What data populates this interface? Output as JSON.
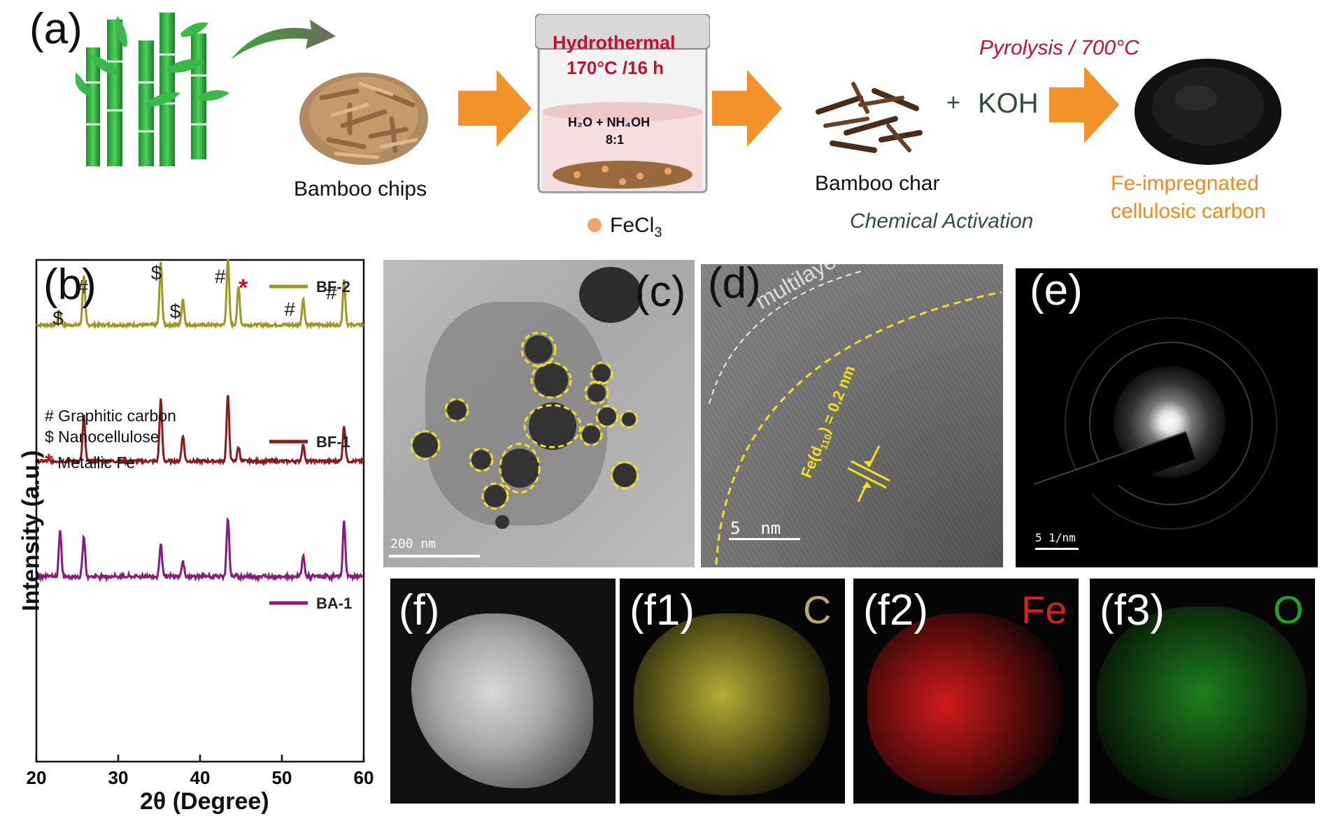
{
  "panel_a": {
    "label": "(a)",
    "bamboo_chips_label": "Bamboo chips",
    "hydro_title": "Hydrothermal",
    "hydro_cond": "170°C /16 h",
    "solution_line1": "H₂O + NH₄OH",
    "solution_line2": "8:1",
    "fecl3_main": "FeCl",
    "fecl3_sub": "3",
    "bamboo_char_label": "Bamboo char",
    "plus": "+",
    "koh": "KOH",
    "pyrolysis": "Pyrolysis / 700°C",
    "chem_activation": "Chemical Activation",
    "product_line1": "Fe-impregnated",
    "product_line2": "cellulosic carbon",
    "colors": {
      "green": "#2ea12e",
      "red": "#c8102e",
      "orange": "#f28a1a",
      "dark_green": "#2f4f3a"
    }
  },
  "panel_b": {
    "label": "(b)",
    "legend_graphitic": "# Graphitic carbon",
    "legend_nanocellulose": "$ Nanocellulose",
    "legend_fe_star": "*",
    "legend_fe": "Metallic Fe",
    "peak_marks": [
      "$",
      "#",
      "$",
      "$",
      "#",
      "*",
      "#",
      "#"
    ]
  },
  "chart_data": {
    "type": "line",
    "xlabel": "2θ (Degree)",
    "ylabel": "Intensity (a.u.)",
    "xlim": [
      20,
      60
    ],
    "xticks": [
      20,
      30,
      40,
      50,
      60
    ],
    "series": [
      {
        "name": "BF-2",
        "color": "#9a9a1e",
        "offset": 2.0,
        "peaks": [
          [
            22.8,
            0.12
          ],
          [
            25.8,
            0.42
          ],
          [
            35.2,
            0.52
          ],
          [
            37.9,
            0.22
          ],
          [
            43.4,
            0.56
          ],
          [
            44.7,
            0.32
          ],
          [
            52.6,
            0.22
          ],
          [
            57.6,
            0.38
          ]
        ]
      },
      {
        "name": "BF-1",
        "color": "#8b1a1a",
        "offset": 1.0,
        "peaks": [
          [
            25.8,
            0.38
          ],
          [
            35.2,
            0.52
          ],
          [
            37.9,
            0.22
          ],
          [
            43.4,
            0.56
          ],
          [
            44.7,
            0.12
          ],
          [
            52.6,
            0.14
          ],
          [
            57.6,
            0.3
          ]
        ]
      },
      {
        "name": "BA-1",
        "color": "#8b1a7e",
        "offset": 0.0,
        "peaks": [
          [
            22.9,
            0.38
          ],
          [
            25.8,
            0.34
          ],
          [
            35.2,
            0.28
          ],
          [
            37.9,
            0.12
          ],
          [
            43.4,
            0.5
          ],
          [
            52.6,
            0.18
          ],
          [
            57.6,
            0.46
          ]
        ]
      }
    ]
  },
  "panel_c": {
    "label": "(c)",
    "scale": "200 nm"
  },
  "panel_d": {
    "label": "(d)",
    "multilayer": "multilayer",
    "fe_text": "Fe(d",
    "fe_sub": "110",
    "fe_val": ") = 0.2 nm",
    "scale": "5  nm"
  },
  "panel_e": {
    "label": "(e)",
    "scale": "5 1/nm"
  },
  "panel_f": {
    "label": "(f)"
  },
  "panel_f1": {
    "label": "(f1)",
    "element": "C",
    "color": "#b8a86a"
  },
  "panel_f2": {
    "label": "(f2)",
    "element": "Fe",
    "color": "#d81e1e"
  },
  "panel_f3": {
    "label": "(f3)",
    "element": "O",
    "color": "#1fa31f"
  }
}
